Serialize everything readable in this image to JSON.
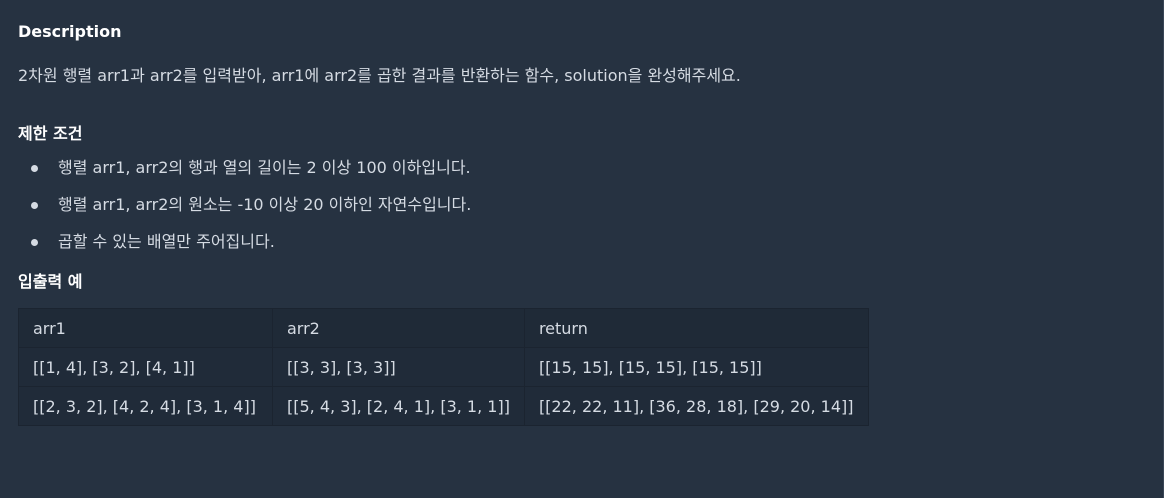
{
  "description": {
    "heading": "Description",
    "text": "2차원 행렬 arr1과 arr2를 입력받아, arr1에 arr2를 곱한 결과를 반환하는 함수, solution을 완성해주세요."
  },
  "constraints": {
    "heading": "제한 조건",
    "items": [
      "행렬 arr1, arr2의 행과 열의 길이는 2 이상 100 이하입니다.",
      "행렬 arr1, arr2의 원소는 -10 이상 20 이하인 자연수입니다.",
      "곱할 수 있는 배열만 주어집니다."
    ]
  },
  "examples": {
    "heading": "입출력 예",
    "columns": [
      "arr1",
      "arr2",
      "return"
    ],
    "rows": [
      [
        "[[1, 4], [3, 2], [4, 1]]",
        "[[3, 3], [3, 3]]",
        "[[15, 15], [15, 15], [15, 15]]"
      ],
      [
        "[[2, 3, 2], [4, 2, 4], [3, 1, 4]]",
        "[[5, 4, 3], [2, 4, 1], [3, 1, 1]]",
        "[[22, 22, 11], [36, 28, 18], [29, 20, 14]]"
      ]
    ]
  },
  "colors": {
    "background": "#263241",
    "text": "#d5dbe3",
    "heading": "#ffffff",
    "table_header": "#1f2a37",
    "table_cell": "#202b39",
    "table_border": "#1b2430"
  }
}
